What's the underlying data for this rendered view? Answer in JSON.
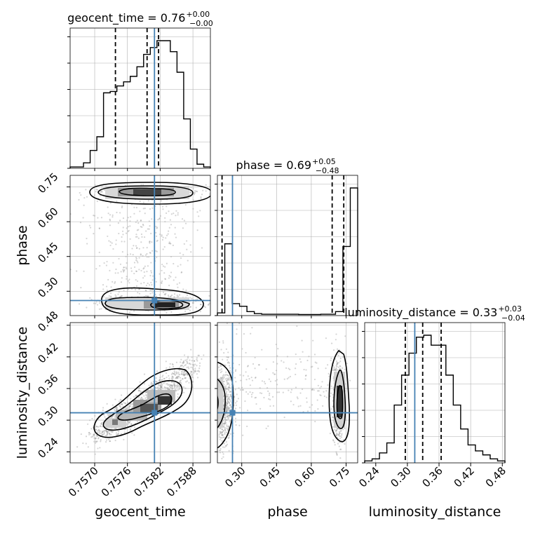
{
  "colors": {
    "truth": "#4682b4",
    "hist": "#000000",
    "quantile": "#000000",
    "grid": "#b0b0b0",
    "scatter": "#888888"
  },
  "chart_data": {
    "type": "corner",
    "parameters": [
      "geocent_time",
      "phase",
      "luminosity_distance"
    ],
    "titles": {
      "geocent_time": {
        "name": "geocent_time",
        "median": "0.76",
        "upper": "+0.00",
        "lower": "−0.00"
      },
      "phase": {
        "name": "phase",
        "median": "0.69",
        "upper": "+0.05",
        "lower": "−0.48"
      },
      "luminosity_distance": {
        "name": "luminosity_distance",
        "median": "0.33",
        "upper": "+0.03",
        "lower": "−0.04"
      }
    },
    "axis_labels": {
      "x": [
        "geocent_time",
        "phase",
        "luminosity_distance"
      ],
      "y": [
        "phase",
        "luminosity_distance"
      ]
    },
    "ranges": {
      "geocent_time": [
        0.75655,
        0.75912
      ],
      "phase": [
        0.195,
        0.8
      ],
      "luminosity_distance": [
        0.219,
        0.485
      ]
    },
    "ticks": {
      "geocent_time": {
        "values": [
          0.757,
          0.7576,
          0.7582,
          0.7588
        ],
        "labels": [
          "0.7570",
          "0.7576",
          "0.7582",
          "0.7588"
        ]
      },
      "phase": {
        "values": [
          0.3,
          0.45,
          0.6,
          0.75
        ],
        "labels": [
          "0.30",
          "0.45",
          "0.60",
          "0.75"
        ]
      },
      "luminosity_distance": {
        "values": [
          0.24,
          0.3,
          0.36,
          0.42,
          0.48
        ],
        "labels": [
          "0.24",
          "0.30",
          "0.36",
          "0.42",
          "0.48"
        ]
      }
    },
    "truths": {
      "geocent_time": 0.7580954,
      "phase": 0.26,
      "luminosity_distance": 0.314
    },
    "quantiles": {
      "geocent_time": [
        0.75738,
        0.75796,
        0.75817
      ],
      "phase": [
        0.215,
        0.69,
        0.74
      ],
      "luminosity_distance": [
        0.296,
        0.329,
        0.364
      ]
    },
    "hist": {
      "geocent_time": [
        1,
        1,
        4,
        13,
        23,
        55,
        56,
        60,
        63,
        67,
        74,
        83,
        88,
        93,
        93,
        85,
        70,
        36,
        14,
        3,
        1
      ],
      "phase": [
        2,
        54,
        9,
        7,
        3,
        1.5,
        1,
        1,
        1,
        1,
        1,
        0.8,
        0.8,
        0.8,
        1,
        1,
        3,
        52,
        96
      ],
      "luminosity_distance": [
        1,
        2,
        5,
        10,
        29,
        44,
        55,
        63,
        64,
        59,
        59,
        44,
        29,
        17,
        9,
        6,
        4,
        2,
        1
      ]
    },
    "grid": true
  }
}
